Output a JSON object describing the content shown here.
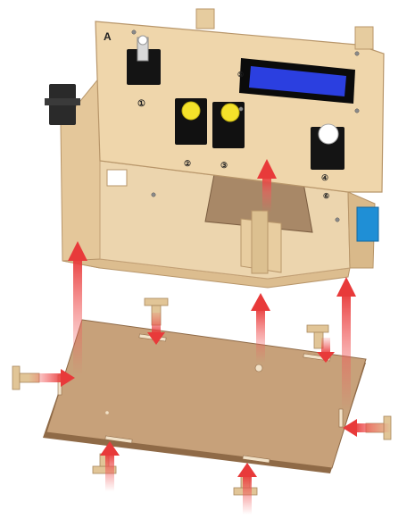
{
  "figure": {
    "panel_letter": "A",
    "module_numbers": [
      "①",
      "②",
      "③",
      "④",
      "⑤",
      "⑥"
    ],
    "colors": {
      "plywood": "#e9cfa4",
      "plywood_edge": "#c9a878",
      "plywood_dark": "#d8b88a",
      "base_plate": "#c7a17a",
      "base_plate_edge": "#8f6a47",
      "lcd_frame": "#0b0b0b",
      "lcd_screen": "#2b3fe0",
      "button_yellow": "#f4e22a",
      "servo": "#2a2a2a",
      "blue_block": "#1f8fd6",
      "arrow": "#f05a5a"
    }
  }
}
